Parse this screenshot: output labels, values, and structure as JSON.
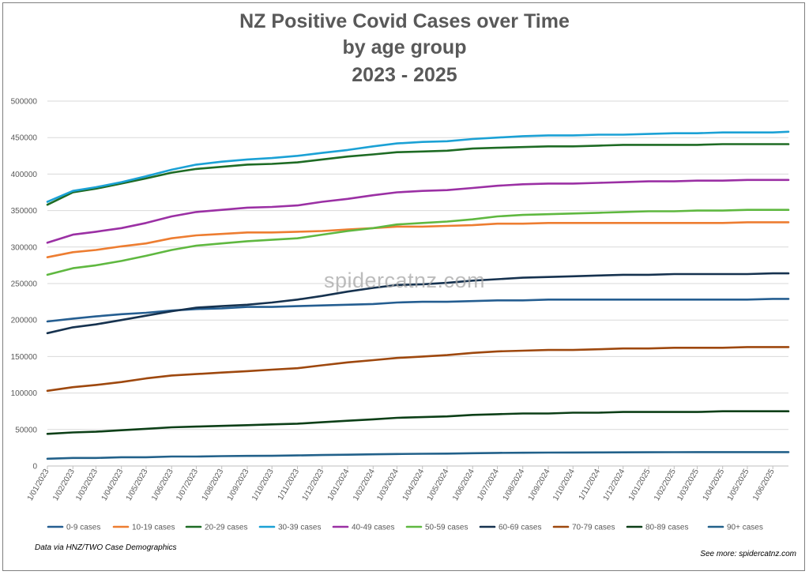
{
  "chart_data": {
    "type": "line",
    "title_lines": [
      "NZ Positive Covid Cases over Time",
      "by age group",
      "2023 - 2025"
    ],
    "ylim": [
      0,
      500000
    ],
    "yticks": [
      0,
      50000,
      100000,
      150000,
      200000,
      250000,
      300000,
      350000,
      400000,
      450000,
      500000
    ],
    "ytick_labels": [
      "0",
      "50000",
      "100000",
      "150000",
      "200000",
      "250000",
      "300000",
      "350000",
      "400000",
      "450000",
      "500000"
    ],
    "x_tick_labels": [
      "1/01/2023",
      "1/02/2023",
      "1/03/2023",
      "1/04/2023",
      "1/05/2023",
      "1/06/2023",
      "1/07/2023",
      "1/08/2023",
      "1/09/2023",
      "1/10/2023",
      "1/11/2023",
      "1/12/2023",
      "1/01/2024",
      "1/02/2024",
      "1/03/2024",
      "1/04/2024",
      "1/05/2024",
      "1/06/2024",
      "1/07/2024",
      "1/08/2024",
      "1/09/2024",
      "1/10/2024",
      "1/11/2024",
      "1/12/2024",
      "1/01/2025",
      "1/02/2025",
      "1/03/2025",
      "1/04/2025",
      "1/05/2025",
      "1/06/2025"
    ],
    "x": [
      "1/01/2023",
      "1/02/2023",
      "1/03/2023",
      "1/04/2023",
      "1/05/2023",
      "1/06/2023",
      "1/07/2023",
      "1/08/2023",
      "1/09/2023",
      "1/10/2023",
      "1/11/2023",
      "1/12/2023",
      "1/01/2024",
      "1/02/2024",
      "1/03/2024",
      "1/04/2024",
      "1/05/2024",
      "1/06/2024",
      "1/07/2024",
      "1/08/2024",
      "1/09/2024",
      "1/10/2024",
      "1/11/2024",
      "1/12/2024",
      "1/01/2025",
      "1/02/2025",
      "1/03/2025",
      "1/04/2025",
      "1/05/2025",
      "1/06/2025",
      "20/06/2025"
    ],
    "grid": true,
    "legend_position": "bottom",
    "series": [
      {
        "name": "0-9 cases",
        "color": "#255e91",
        "values": [
          198000,
          202000,
          205000,
          208000,
          210000,
          213000,
          215000,
          216000,
          218000,
          218000,
          219000,
          220000,
          221000,
          222000,
          224000,
          225000,
          225000,
          226000,
          227000,
          227000,
          228000,
          228000,
          228000,
          228000,
          228000,
          228000,
          228000,
          228000,
          228000,
          229000,
          229000
        ]
      },
      {
        "name": "10-19 cases",
        "color": "#ed7d31",
        "values": [
          286000,
          293000,
          296000,
          301000,
          305000,
          312000,
          316000,
          318000,
          320000,
          320000,
          321000,
          322000,
          324000,
          326000,
          328000,
          328000,
          329000,
          330000,
          332000,
          332000,
          333000,
          333000,
          333000,
          333000,
          333000,
          333000,
          333000,
          333000,
          334000,
          334000,
          334000
        ]
      },
      {
        "name": "20-29 cases",
        "color": "#1e6b24",
        "values": [
          358000,
          375000,
          380000,
          387000,
          394000,
          402000,
          407000,
          410000,
          413000,
          414000,
          416000,
          420000,
          424000,
          427000,
          430000,
          431000,
          432000,
          435000,
          436000,
          437000,
          438000,
          438000,
          439000,
          440000,
          440000,
          440000,
          440000,
          441000,
          441000,
          441000,
          441000
        ]
      },
      {
        "name": "30-39 cases",
        "color": "#1ba1d5",
        "values": [
          362000,
          377000,
          382000,
          389000,
          397000,
          406000,
          413000,
          417000,
          420000,
          422000,
          425000,
          429000,
          433000,
          438000,
          442000,
          444000,
          445000,
          448000,
          450000,
          452000,
          453000,
          453000,
          454000,
          454000,
          455000,
          456000,
          456000,
          457000,
          457000,
          457000,
          458000
        ]
      },
      {
        "name": "40-49 cases",
        "color": "#9b30a4",
        "values": [
          306000,
          317000,
          321000,
          326000,
          333000,
          342000,
          348000,
          351000,
          354000,
          355000,
          357000,
          362000,
          366000,
          371000,
          375000,
          377000,
          378000,
          381000,
          384000,
          386000,
          387000,
          387000,
          388000,
          389000,
          390000,
          390000,
          391000,
          391000,
          392000,
          392000,
          392000
        ]
      },
      {
        "name": "50-59 cases",
        "color": "#5fb840",
        "values": [
          262000,
          271000,
          275000,
          281000,
          288000,
          296000,
          302000,
          305000,
          308000,
          310000,
          312000,
          317000,
          322000,
          326000,
          331000,
          333000,
          335000,
          338000,
          342000,
          344000,
          345000,
          346000,
          347000,
          348000,
          349000,
          349000,
          350000,
          350000,
          351000,
          351000,
          351000
        ]
      },
      {
        "name": "60-69 cases",
        "color": "#16324f",
        "values": [
          182000,
          190000,
          194000,
          200000,
          206000,
          212000,
          217000,
          219000,
          221000,
          224000,
          228000,
          233000,
          239000,
          244000,
          248000,
          249000,
          251000,
          254000,
          256000,
          258000,
          259000,
          260000,
          261000,
          262000,
          262000,
          263000,
          263000,
          263000,
          263000,
          264000,
          264000
        ]
      },
      {
        "name": "70-79 cases",
        "color": "#9e480e",
        "values": [
          103000,
          108000,
          111000,
          115000,
          120000,
          124000,
          126000,
          128000,
          130000,
          132000,
          134000,
          138000,
          142000,
          145000,
          148000,
          150000,
          152000,
          155000,
          157000,
          158000,
          159000,
          159000,
          160000,
          161000,
          161000,
          162000,
          162000,
          162000,
          163000,
          163000,
          163000
        ]
      },
      {
        "name": "80-89 cases",
        "color": "#0c3f17",
        "values": [
          44000,
          46000,
          47000,
          49000,
          51000,
          53000,
          54000,
          55000,
          56000,
          57000,
          58000,
          60000,
          62000,
          64000,
          66000,
          67000,
          68000,
          70000,
          71000,
          72000,
          72000,
          73000,
          73000,
          74000,
          74000,
          74000,
          74000,
          75000,
          75000,
          75000,
          75000
        ]
      },
      {
        "name": "90+ cases",
        "color": "#22618a",
        "values": [
          10000,
          11000,
          11000,
          12000,
          12000,
          13000,
          13000,
          13500,
          13800,
          14000,
          14500,
          15000,
          15500,
          16000,
          16500,
          16800,
          17000,
          17500,
          18000,
          18200,
          18400,
          18500,
          18600,
          18700,
          18800,
          18900,
          19000,
          19000,
          19000,
          19000,
          19000
        ]
      }
    ]
  },
  "watermark": "spidercatnz.com",
  "footnote_left": "Data via HNZ/TWO Case Demographics",
  "footnote_right": "See more: spidercatnz.com"
}
